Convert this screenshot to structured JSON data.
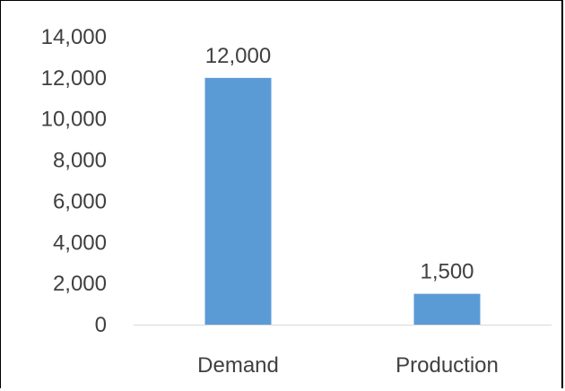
{
  "chart_data": {
    "type": "bar",
    "categories": [
      "Demand",
      "Production"
    ],
    "values": [
      12000,
      1500
    ],
    "data_labels": [
      "12,000",
      "1,500"
    ],
    "y_ticks": [
      "0",
      "2,000",
      "4,000",
      "6,000",
      "8,000",
      "10,000",
      "12,000",
      "14,000"
    ],
    "ylim": [
      0,
      14000
    ],
    "y_step": 2000,
    "title": "",
    "xlabel": "",
    "ylabel": "",
    "grid": false,
    "legend": "none",
    "colors": {
      "bar": "#5b9bd5",
      "axis": "#d9d9d9",
      "text": "#404040"
    }
  }
}
